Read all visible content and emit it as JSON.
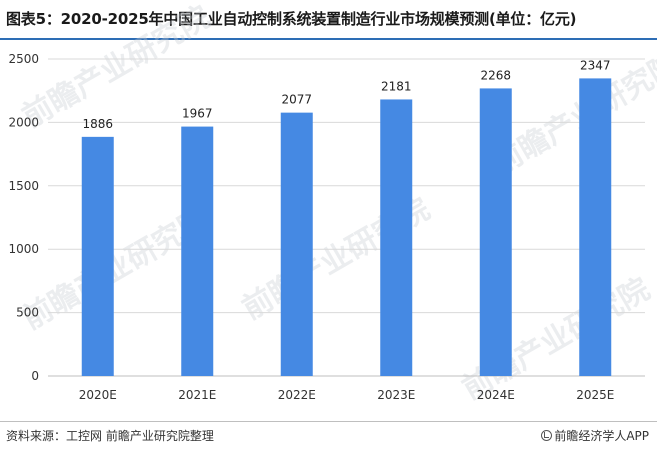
{
  "title": "图表5：2020-2025年中国工业自动控制系统装置制造行业市场规模预测(单位：亿元)",
  "source": "资料来源：工控网 前瞻产业研究院整理",
  "brand": "前瞻经济学人APP",
  "watermark": "前瞻产业研究院",
  "colors": {
    "bar": "#4589e3",
    "title_rule": "#2d6db5",
    "grid": "#d9d9d9",
    "axis": "#bfbfbf"
  },
  "chart_data": {
    "type": "bar",
    "categories": [
      "2020E",
      "2021E",
      "2022E",
      "2023E",
      "2024E",
      "2025E"
    ],
    "values": [
      1886,
      1967,
      2077,
      2181,
      2268,
      2347
    ],
    "ylim": [
      0,
      2500
    ],
    "yticks": [
      0,
      500,
      1000,
      1500,
      2000,
      2500
    ],
    "grid": true,
    "legend": "none"
  }
}
